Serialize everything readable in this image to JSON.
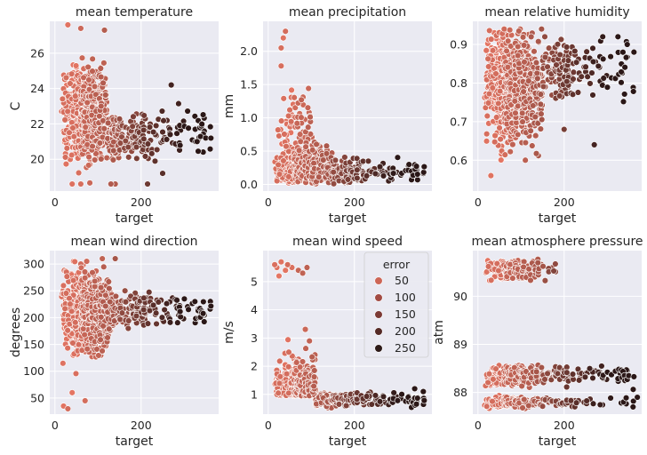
{
  "chart_data": [
    {
      "type": "scatter",
      "title": "mean temperature",
      "xlabel": "target",
      "ylabel": "C",
      "xlim": [
        -12,
        380
      ],
      "ylim": [
        18.2,
        27.8
      ],
      "xticks": [
        0,
        200
      ],
      "yticks": [
        20,
        22,
        24,
        26
      ],
      "shape": "temp"
    },
    {
      "type": "scatter",
      "title": "mean precipitation",
      "xlabel": "target",
      "ylabel": "mm",
      "xlim": [
        -12,
        380
      ],
      "ylim": [
        -0.1,
        2.45
      ],
      "xticks": [
        0,
        200
      ],
      "yticks": [
        0.0,
        0.5,
        1.0,
        1.5,
        2.0
      ],
      "shape": "precip"
    },
    {
      "type": "scatter",
      "title": "mean relative humidity",
      "xlabel": "target",
      "ylabel": "",
      "xlim": [
        -12,
        380
      ],
      "ylim": [
        0.52,
        0.96
      ],
      "xticks": [
        0,
        200
      ],
      "yticks": [
        0.6,
        0.7,
        0.8,
        0.9
      ],
      "shape": "humid"
    },
    {
      "type": "scatter",
      "title": "mean wind direction",
      "xlabel": "target",
      "ylabel": "degrees",
      "xlim": [
        -12,
        380
      ],
      "ylim": [
        20,
        325
      ],
      "xticks": [
        0,
        200
      ],
      "yticks": [
        50,
        100,
        150,
        200,
        250,
        300
      ],
      "shape": "wind_dir"
    },
    {
      "type": "scatter",
      "title": "mean wind speed",
      "xlabel": "target",
      "ylabel": "m/s",
      "xlim": [
        -12,
        380
      ],
      "ylim": [
        0.3,
        6.1
      ],
      "xticks": [
        0,
        200
      ],
      "yticks": [
        1,
        2,
        3,
        4,
        5
      ],
      "shape": "wind_speed",
      "legend": {
        "title": "error",
        "placement": "upper right",
        "entries": [
          "50",
          "100",
          "150",
          "200",
          "250"
        ]
      }
    },
    {
      "type": "scatter",
      "title": "mean atmosphere pressure",
      "xlabel": "target",
      "ylabel": "atm",
      "xlim": [
        -12,
        380
      ],
      "ylim": [
        87.55,
        90.95
      ],
      "xticks": [
        0,
        200
      ],
      "yticks": [
        88,
        89,
        90
      ],
      "shape": "pressure"
    }
  ],
  "colors": {
    "background": "#eaeaf2",
    "grid": "#ffffff",
    "error_low": "#f07b68",
    "error_high": "#2a1717",
    "legend_markers": [
      "#cd6656",
      "#a24b43",
      "#7c3a35",
      "#552a26",
      "#2d1a18"
    ]
  }
}
